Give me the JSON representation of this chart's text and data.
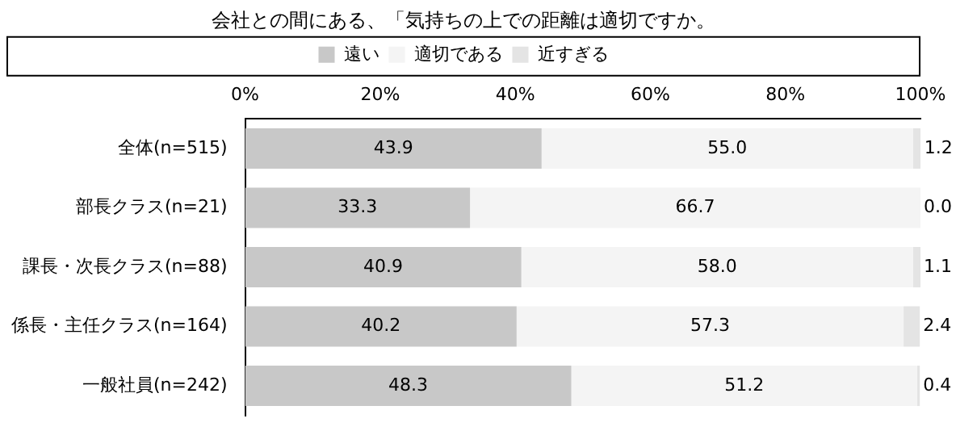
{
  "chart_data": {
    "type": "bar",
    "orientation": "horizontal",
    "stacked": true,
    "title": "会社との間にある、「気持ちの上での距離は適切ですか。",
    "categories": [
      "全体(n=515)",
      "部長クラス(n=21)",
      "課長・次長クラス(n=88)",
      "係長・主任クラス(n=164)",
      "一般社員(n=242)"
    ],
    "series": [
      {
        "name": "遠い",
        "color": "#c8c8c8",
        "values": [
          43.9,
          33.3,
          40.9,
          40.2,
          48.3
        ],
        "value_labels": [
          "43.9",
          "33.3",
          "40.9",
          "40.2",
          "48.3"
        ]
      },
      {
        "name": "適切である",
        "color": "#f4f4f4",
        "values": [
          55.0,
          66.7,
          58.0,
          57.3,
          51.2
        ],
        "value_labels": [
          "55.0",
          "66.7",
          "58.0",
          "57.3",
          "51.2"
        ]
      },
      {
        "name": "近すぎる",
        "color": "#e4e4e4",
        "values": [
          1.2,
          0.0,
          1.1,
          2.4,
          0.4
        ],
        "value_labels": [
          "1.2",
          "0.0",
          "1.1",
          "2.4",
          "0.4"
        ]
      }
    ],
    "xlim": [
      0,
      100
    ],
    "xticks": [
      {
        "value": 0,
        "label": "0%"
      },
      {
        "value": 20,
        "label": "20%"
      },
      {
        "value": 40,
        "label": "40%"
      },
      {
        "value": 60,
        "label": "60%"
      },
      {
        "value": 80,
        "label": "80%"
      },
      {
        "value": 100,
        "label": "100%"
      }
    ],
    "grid": false,
    "legend": "top"
  }
}
